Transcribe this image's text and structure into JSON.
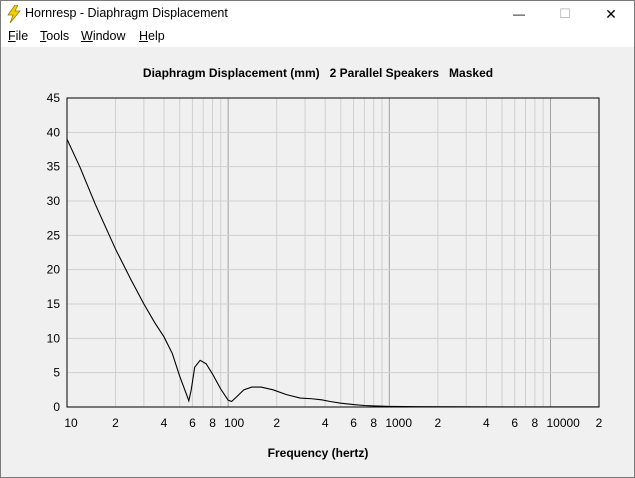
{
  "window": {
    "title": "Hornresp - Diaphragm Displacement",
    "minimize_glyph": "—",
    "maximize_glyph": "☐",
    "close_glyph": "✕",
    "app_icon": "lightning-bolt-icon"
  },
  "menu": [
    {
      "label": "File",
      "accel": "F",
      "rest": "ile"
    },
    {
      "label": "Tools",
      "accel": "T",
      "rest": "ools"
    },
    {
      "label": "Window",
      "accel": "W",
      "rest": "indow"
    },
    {
      "label": "Help",
      "accel": "H",
      "rest": "elp"
    }
  ],
  "chart_data": {
    "type": "line",
    "title": "Diaphragm Displacement (mm)   2 Parallel Speakers   Masked",
    "xlabel": "Frequency (hertz)",
    "ylabel": "",
    "x_scale": "log",
    "xlim": [
      10,
      20000
    ],
    "ylim": [
      0,
      45
    ],
    "grid": true,
    "y_ticks": [
      "0",
      "5",
      "10",
      "15",
      "20",
      "25",
      "30",
      "35",
      "40",
      "45"
    ],
    "x_tick_labels": [
      {
        "x": 10,
        "label": "10"
      },
      {
        "x": 20,
        "label": "2"
      },
      {
        "x": 40,
        "label": "4"
      },
      {
        "x": 60,
        "label": "6"
      },
      {
        "x": 80,
        "label": "8"
      },
      {
        "x": 100,
        "label": "100"
      },
      {
        "x": 200,
        "label": "2"
      },
      {
        "x": 400,
        "label": "4"
      },
      {
        "x": 600,
        "label": "6"
      },
      {
        "x": 800,
        "label": "8"
      },
      {
        "x": 1000,
        "label": "1000"
      },
      {
        "x": 2000,
        "label": "2"
      },
      {
        "x": 4000,
        "label": "4"
      },
      {
        "x": 6000,
        "label": "6"
      },
      {
        "x": 8000,
        "label": "8"
      },
      {
        "x": 10000,
        "label": "10000"
      },
      {
        "x": 20000,
        "label": "2"
      }
    ],
    "series": [
      {
        "color": "#000000",
        "points": [
          [
            10,
            39
          ],
          [
            12,
            35
          ],
          [
            15,
            29.5
          ],
          [
            20,
            23
          ],
          [
            25,
            18.5
          ],
          [
            30,
            15
          ],
          [
            35,
            12.3
          ],
          [
            40,
            10.2
          ],
          [
            45,
            7.8
          ],
          [
            50,
            4.5
          ],
          [
            55,
            1.9
          ],
          [
            57,
            0.9
          ],
          [
            59,
            2.5
          ],
          [
            62,
            5.8
          ],
          [
            67,
            6.8
          ],
          [
            73,
            6.3
          ],
          [
            80,
            4.8
          ],
          [
            90,
            2.6
          ],
          [
            100,
            1.0
          ],
          [
            105,
            0.8
          ],
          [
            112,
            1.4
          ],
          [
            125,
            2.5
          ],
          [
            140,
            2.9
          ],
          [
            160,
            2.9
          ],
          [
            190,
            2.5
          ],
          [
            230,
            1.8
          ],
          [
            280,
            1.3
          ],
          [
            330,
            1.2
          ],
          [
            380,
            1.05
          ],
          [
            430,
            0.8
          ],
          [
            500,
            0.55
          ],
          [
            600,
            0.35
          ],
          [
            700,
            0.22
          ],
          [
            800,
            0.15
          ],
          [
            1000,
            0.08
          ],
          [
            1500,
            0.04
          ],
          [
            3000,
            0.02
          ],
          [
            10000,
            0.01
          ],
          [
            20000,
            0.01
          ]
        ]
      }
    ]
  }
}
